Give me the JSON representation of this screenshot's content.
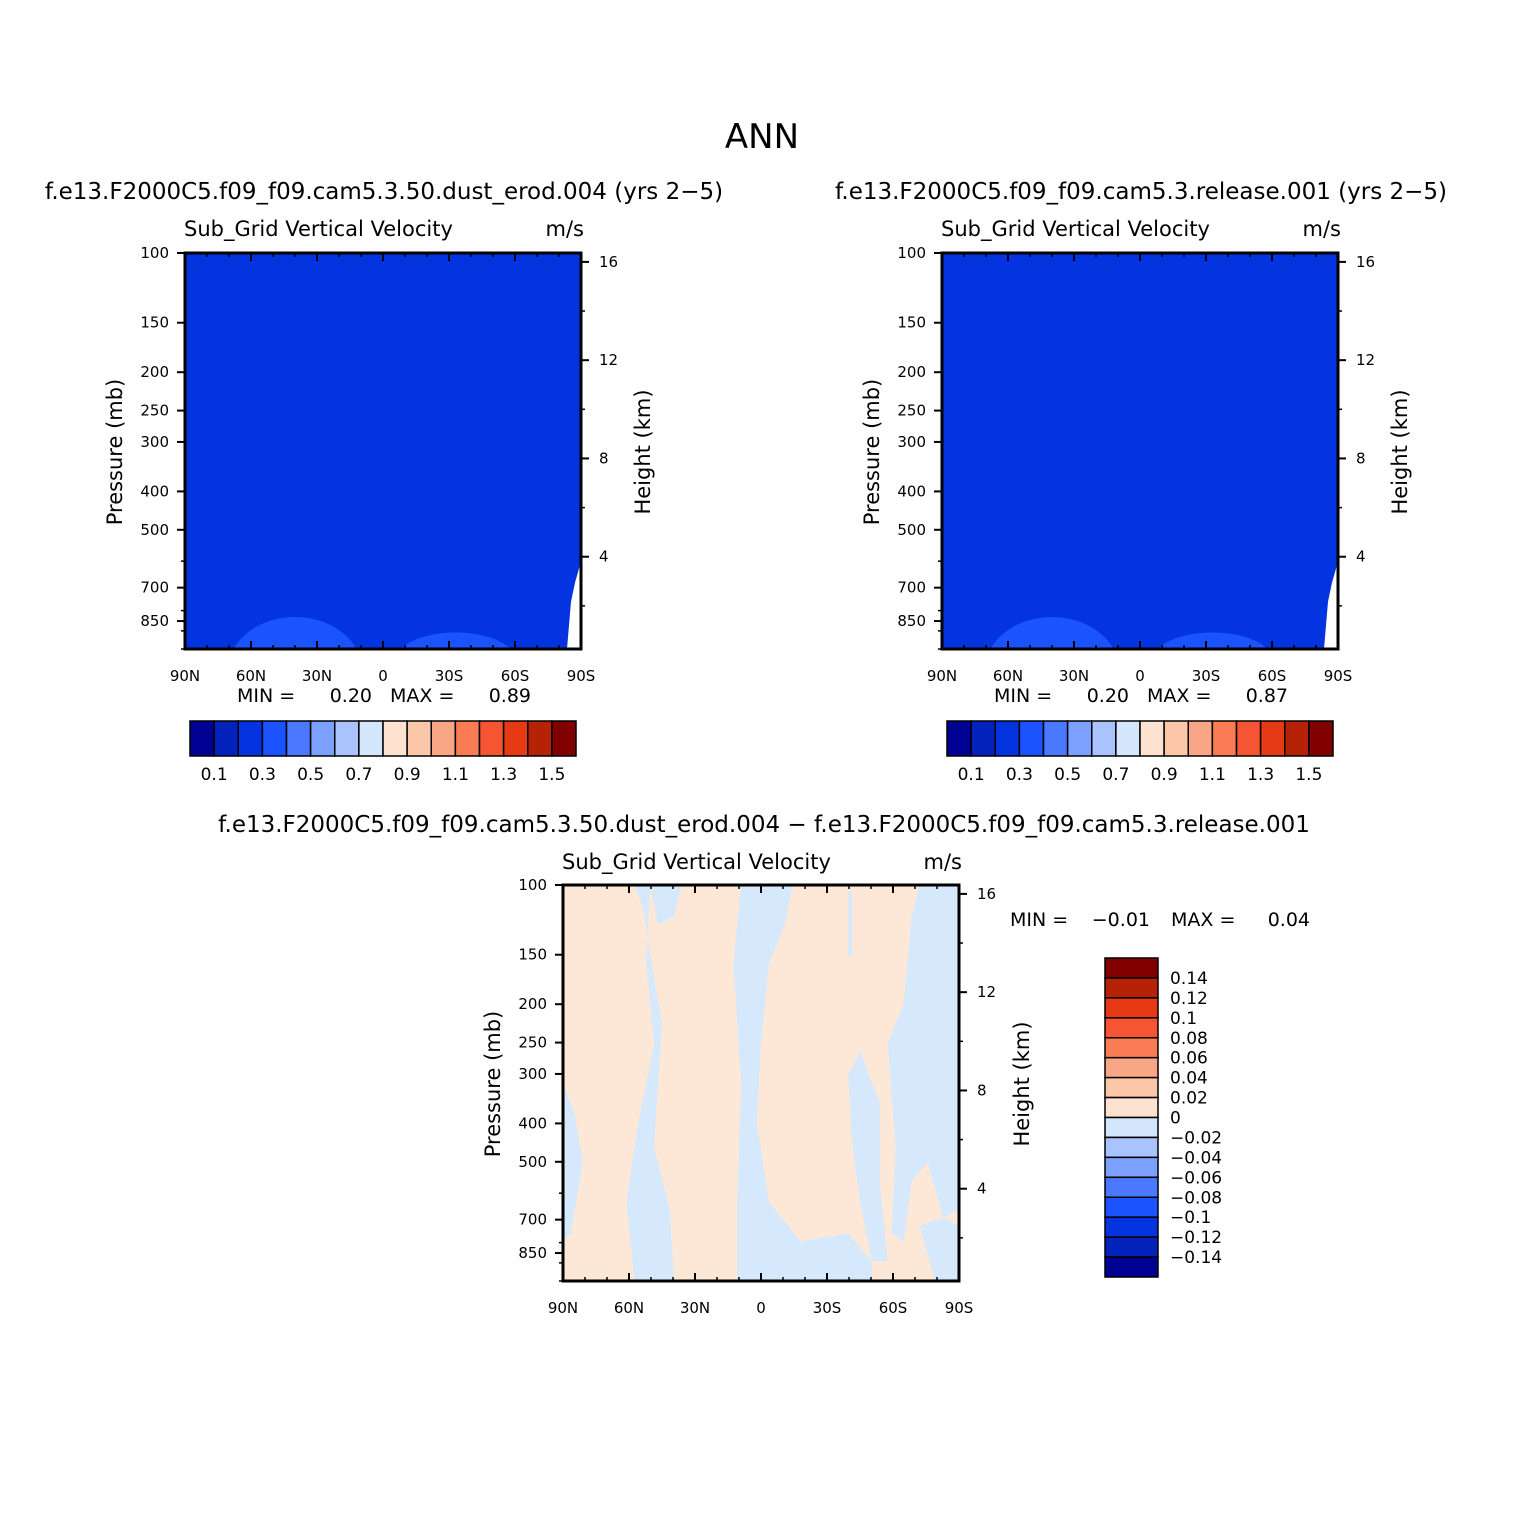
{
  "figure": {
    "title": "ANN"
  },
  "chart_data": [
    {
      "type": "heatmap",
      "case_title": "f.e13.F2000C5.f09_f09.cam5.3.50.dust_erod.004 (yrs 2−5)",
      "variable": "Sub_Grid Vertical Velocity",
      "units": "m/s",
      "y_label": "Pressure (mb)",
      "y2_label": "Height (km)",
      "y_ticks": [
        "100",
        "150",
        "200",
        "250",
        "300",
        "400",
        "500",
        "700",
        "850"
      ],
      "y2_ticks": [
        "16",
        "12",
        "8",
        "4"
      ],
      "x_ticks": [
        "90N",
        "60N",
        "30N",
        "0",
        "30S",
        "60S",
        "90S"
      ],
      "x": [
        90,
        60,
        30,
        0,
        -30,
        -60,
        -90
      ],
      "ylim": [
        100,
        1000
      ],
      "y_scale": "log",
      "min_label": "MIN =",
      "min_value": "0.20",
      "max_label": "MAX =",
      "max_value": "0.89",
      "dominant_fill": "#0433e0",
      "dominant_level": "0.2–0.3",
      "colorbar": {
        "orientation": "horizontal",
        "colors": [
          "#000093",
          "#0222bb",
          "#0433e0",
          "#1a53ff",
          "#4a78ff",
          "#7ba0ff",
          "#a8c3ff",
          "#d4e6fc",
          "#fde3cf",
          "#fcc6a9",
          "#f8a685",
          "#f97c54",
          "#f55532",
          "#e63a15",
          "#b52206",
          "#800000"
        ],
        "labels": [
          "0.1",
          "0.3",
          "0.5",
          "0.7",
          "0.9",
          "1.1",
          "1.3",
          "1.5"
        ]
      }
    },
    {
      "type": "heatmap",
      "case_title": "f.e13.F2000C5.f09_f09.cam5.3.release.001 (yrs 2−5)",
      "variable": "Sub_Grid Vertical Velocity",
      "units": "m/s",
      "y_label": "Pressure (mb)",
      "y2_label": "Height (km)",
      "y_ticks": [
        "100",
        "150",
        "200",
        "250",
        "300",
        "400",
        "500",
        "700",
        "850"
      ],
      "y2_ticks": [
        "16",
        "12",
        "8",
        "4"
      ],
      "x_ticks": [
        "90N",
        "60N",
        "30N",
        "0",
        "30S",
        "60S",
        "90S"
      ],
      "x": [
        90,
        60,
        30,
        0,
        -30,
        -60,
        -90
      ],
      "ylim": [
        100,
        1000
      ],
      "y_scale": "log",
      "min_label": "MIN =",
      "min_value": "0.20",
      "max_label": "MAX =",
      "max_value": "0.87",
      "dominant_fill": "#0433e0",
      "dominant_level": "0.2–0.3",
      "colorbar": {
        "orientation": "horizontal",
        "colors": [
          "#000093",
          "#0222bb",
          "#0433e0",
          "#1a53ff",
          "#4a78ff",
          "#7ba0ff",
          "#a8c3ff",
          "#d4e6fc",
          "#fde3cf",
          "#fcc6a9",
          "#f8a685",
          "#f97c54",
          "#f55532",
          "#e63a15",
          "#b52206",
          "#800000"
        ],
        "labels": [
          "0.1",
          "0.3",
          "0.5",
          "0.7",
          "0.9",
          "1.1",
          "1.3",
          "1.5"
        ]
      }
    },
    {
      "type": "heatmap",
      "case_title": "f.e13.F2000C5.f09_f09.cam5.3.50.dust_erod.004 − f.e13.F2000C5.f09_f09.cam5.3.release.001",
      "variable": "Sub_Grid Vertical Velocity",
      "units": "m/s",
      "y_label": "Pressure (mb)",
      "y2_label": "Height (km)",
      "y_ticks": [
        "100",
        "150",
        "200",
        "250",
        "300",
        "400",
        "500",
        "700",
        "850"
      ],
      "y2_ticks": [
        "16",
        "12",
        "8",
        "4"
      ],
      "x_ticks": [
        "90N",
        "60N",
        "30N",
        "0",
        "30S",
        "60S",
        "90S"
      ],
      "x": [
        90,
        60,
        30,
        0,
        -30,
        -60,
        -90
      ],
      "ylim": [
        100,
        1000
      ],
      "y_scale": "log",
      "min_label": "MIN =",
      "min_value": "−0.01",
      "max_label": "MAX =",
      "max_value": "0.04",
      "dominant_fill": "#fde8d7",
      "secondary_fill": "#d6e8fb",
      "colorbar": {
        "orientation": "vertical",
        "colors": [
          "#800000",
          "#b52206",
          "#e63a15",
          "#f55532",
          "#f97c54",
          "#f8a685",
          "#fcc6a9",
          "#fde3cf",
          "#d4e6fc",
          "#a8c3ff",
          "#7ba0ff",
          "#4a78ff",
          "#1a53ff",
          "#0433e0",
          "#0222bb",
          "#000093"
        ],
        "labels": [
          "0.14",
          "0.12",
          "0.1",
          "0.08",
          "0.06",
          "0.04",
          "0.02",
          "0",
          "−0.02",
          "−0.04",
          "−0.06",
          "−0.08",
          "−0.1",
          "−0.12",
          "−0.14"
        ]
      }
    }
  ]
}
